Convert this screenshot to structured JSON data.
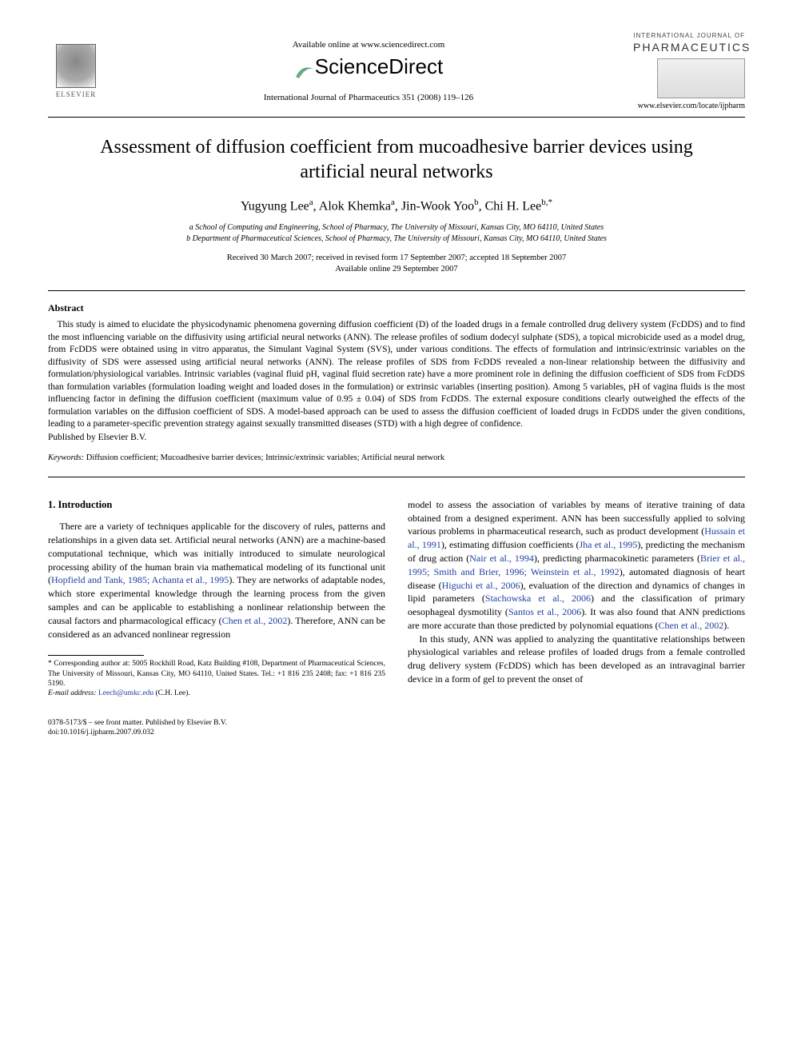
{
  "header": {
    "elsevier_label": "ELSEVIER",
    "available_text": "Available online at www.sciencedirect.com",
    "sd_logo_text": "ScienceDirect",
    "journal_citation": "International Journal of Pharmaceutics 351 (2008) 119–126",
    "ijp_small": "INTERNATIONAL JOURNAL OF",
    "ijp_big": "PHARMACEUTICS",
    "journal_url": "www.elsevier.com/locate/ijpharm"
  },
  "title": "Assessment of diffusion coefficient from mucoadhesive barrier devices using artificial neural networks",
  "authors_html": "Yugyung Lee<sup class='sup'>a</sup>, Alok Khemka<sup class='sup'>a</sup>, Jin-Wook Yoo<sup class='sup'>b</sup>, Chi H. Lee<sup class='sup'>b,*</sup>",
  "affiliations": {
    "a": "a School of Computing and Engineering, School of Pharmacy, The University of Missouri, Kansas City, MO 64110, United States",
    "b": "b Department of Pharmaceutical Sciences, School of Pharmacy, The University of Missouri, Kansas City, MO 64110, United States"
  },
  "dates": {
    "line1": "Received 30 March 2007; received in revised form 17 September 2007; accepted 18 September 2007",
    "line2": "Available online 29 September 2007"
  },
  "abstract": {
    "heading": "Abstract",
    "body": "This study is aimed to elucidate the physicodynamic phenomena governing diffusion coefficient (D) of the loaded drugs in a female controlled drug delivery system (FcDDS) and to find the most influencing variable on the diffusivity using artificial neural networks (ANN). The release profiles of sodium dodecyl sulphate (SDS), a topical microbicide used as a model drug, from FcDDS were obtained using in vitro apparatus, the Simulant Vaginal System (SVS), under various conditions. The effects of formulation and intrinsic/extrinsic variables on the diffusivity of SDS were assessed using artificial neural networks (ANN). The release profiles of SDS from FcDDS revealed a non-linear relationship between the diffusivity and formulation/physiological variables. Intrinsic variables (vaginal fluid pH, vaginal fluid secretion rate) have a more prominent role in defining the diffusion coefficient of SDS from FcDDS than formulation variables (formulation loading weight and loaded doses in the formulation) or extrinsic variables (inserting position). Among 5 variables, pH of vagina fluids is the most influencing factor in defining the diffusion coefficient (maximum value of 0.95 ± 0.04) of SDS from FcDDS. The external exposure conditions clearly outweighed the effects of the formulation variables on the diffusion coefficient of SDS. A model-based approach can be used to assess the diffusion coefficient of loaded drugs in FcDDS under the given conditions, leading to a parameter-specific prevention strategy against sexually transmitted diseases (STD) with a high degree of confidence.",
    "copyright": "Published by Elsevier B.V."
  },
  "keywords": {
    "label": "Keywords:",
    "text": " Diffusion coefficient; Mucoadhesive barrier devices; Intrinsic/extrinsic variables; Artificial neural network"
  },
  "intro": {
    "heading": "1.  Introduction",
    "col1_p1a": "There are a variety of techniques applicable for the discovery of rules, patterns and relationships in a given data set. Artificial neural networks (ANN) are a machine-based computational technique, which was initially introduced to simulate neurological processing ability of the human brain via mathematical modeling of its functional unit (",
    "cite1": "Hopfield and Tank, 1985; Achanta et al., 1995",
    "col1_p1b": "). They are networks of adaptable nodes, which store experimental knowledge through the learning process from the given samples and can be applicable to establishing a nonlinear relationship between the causal factors and pharmacological efficacy (",
    "cite2": "Chen et al., 2002",
    "col1_p1c": "). Therefore, ANN can be considered as an advanced nonlinear regression",
    "col2_p1a": "model to assess the association of variables by means of iterative training of data obtained from a designed experiment. ANN has been successfully applied to solving various problems in pharmaceutical research, such as product development (",
    "cite3": "Hussain et al., 1991",
    "col2_p1b": "), estimating diffusion coefficients (",
    "cite4": "Jha et al., 1995",
    "col2_p1c": "), predicting the mechanism of drug action (",
    "cite5": "Nair et al., 1994",
    "col2_p1d": "), predicting pharmacokinetic parameters (",
    "cite6": "Brier et al., 1995; Smith and Brier, 1996; Weinstein et al., 1992",
    "col2_p1e": "), automated diagnosis of heart disease (",
    "cite7": "Higuchi et al., 2006",
    "col2_p1f": "), evaluation of the direction and dynamics of changes in lipid parameters (",
    "cite8": "Stachowska et al., 2006",
    "col2_p1g": ") and the classification of primary oesophageal dysmotility (",
    "cite9": "Santos et al., 2006",
    "col2_p1h": "). It was also found that ANN predictions are more accurate than those predicted by polynomial equations (",
    "cite10": "Chen et al., 2002",
    "col2_p1i": ").",
    "col2_p2": "In this study, ANN was applied to analyzing the quantitative relationships between physiological variables and release profiles of loaded drugs from a female controlled drug delivery system (FcDDS) which has been developed as an intravaginal barrier device in a form of gel to prevent the onset of"
  },
  "footnote": {
    "corr": "* Corresponding author at: 5005 Rockhill Road, Katz Building #108, Department of Pharmaceutical Sciences, The University of Missouri, Kansas City, MO 64110, United States. Tel.: +1 816 235 2408; fax: +1 816 235 5190.",
    "email_label": "E-mail address:",
    "email": "Leech@umkc.edu",
    "email_tail": " (C.H. Lee)."
  },
  "bottom": {
    "line1": "0378-5173/$ – see front matter. Published by Elsevier B.V.",
    "line2": "doi:10.1016/j.ijpharm.2007.09.032"
  },
  "colors": {
    "cite": "#2040a0",
    "text": "#000000",
    "bg": "#ffffff"
  }
}
